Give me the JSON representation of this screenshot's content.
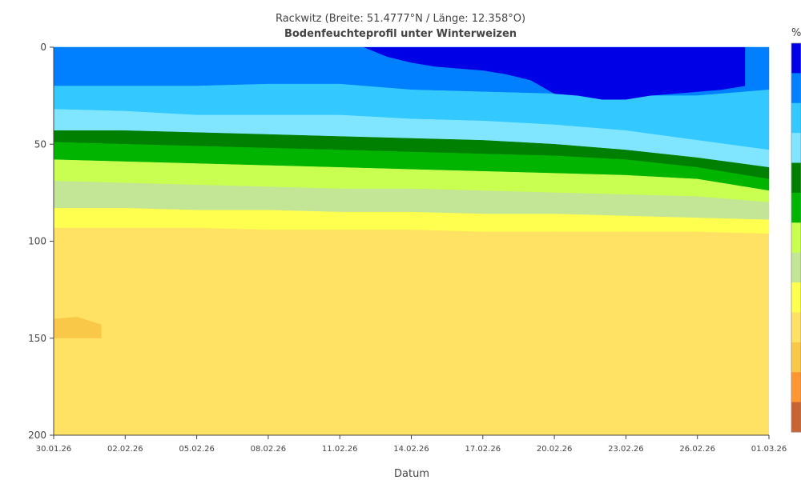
{
  "chart_data": {
    "type": "heatmap",
    "title": "Rackwitz (Breite: 51.4777°N / Länge: 12.358°O)",
    "subtitle": "Bodenfeuchteprofil unter Winterweizen",
    "xlabel": "Datum",
    "ylabel": "",
    "x_ticks": [
      "30.01.26",
      "02.02.26",
      "05.02.26",
      "08.02.26",
      "11.02.26",
      "14.02.26",
      "17.02.26",
      "20.02.26",
      "23.02.26",
      "26.02.26",
      "01.03.26"
    ],
    "y_ticks": [
      0,
      50,
      100,
      150,
      200
    ],
    "ylim": [
      200,
      0
    ],
    "xlim": [
      "30.01.26",
      "01.03.26"
    ],
    "legend_unit": "%",
    "legend_placement": "right",
    "colorscale": [
      "#0000e6",
      "#0080ff",
      "#33c8ff",
      "#80e6ff",
      "#008000",
      "#00b400",
      "#c8ff50",
      "#c3e696",
      "#ffff50",
      "#ffe264",
      "#fac848",
      "#ff9632",
      "#c86432"
    ],
    "series": [
      {
        "label": "b1",
        "color": "#0080ff",
        "start": [
          0,
          0
        ],
        "end": [
          30,
          0
        ],
        "top": [
          0,
          0,
          0,
          0,
          0,
          0,
          0,
          0,
          0,
          0,
          0
        ],
        "bottom": [
          20,
          20,
          20,
          19,
          19,
          22,
          23,
          24,
          25,
          25,
          22
        ]
      },
      {
        "label": "b2",
        "color": "#33c8ff",
        "start": [
          0,
          20
        ],
        "end": [
          30,
          22
        ],
        "top": [
          20,
          20,
          20,
          19,
          19,
          22,
          23,
          24,
          25,
          25,
          22
        ],
        "bottom": [
          32,
          33,
          35,
          35,
          35,
          37,
          38,
          40,
          43,
          48,
          53
        ]
      },
      {
        "label": "b3",
        "color": "#80e6ff",
        "start": [
          0,
          32
        ],
        "end": [
          30,
          53
        ],
        "top": [
          32,
          33,
          35,
          35,
          35,
          37,
          38,
          40,
          43,
          48,
          53
        ],
        "bottom": [
          43,
          43,
          44,
          45,
          46,
          47,
          48,
          50,
          53,
          57,
          62
        ]
      },
      {
        "label": "b4",
        "color": "#008000",
        "start": [
          0,
          43
        ],
        "end": [
          30,
          62
        ],
        "top": [
          43,
          43,
          44,
          45,
          46,
          47,
          48,
          50,
          53,
          57,
          62
        ],
        "bottom": [
          49,
          50,
          51,
          52,
          53,
          54,
          55,
          56,
          58,
          62,
          68
        ]
      },
      {
        "label": "b5",
        "color": "#00b400",
        "start": [
          0,
          49
        ],
        "end": [
          30,
          68
        ],
        "top": [
          49,
          50,
          51,
          52,
          53,
          54,
          55,
          56,
          58,
          62,
          68
        ],
        "bottom": [
          58,
          59,
          60,
          61,
          62,
          63,
          64,
          65,
          66,
          68,
          74
        ]
      },
      {
        "label": "b6",
        "color": "#c8ff50",
        "start": [
          0,
          58
        ],
        "end": [
          30,
          74
        ],
        "top": [
          58,
          59,
          60,
          61,
          62,
          63,
          64,
          65,
          66,
          68,
          74
        ],
        "bottom": [
          69,
          70,
          71,
          72,
          73,
          73,
          74,
          75,
          76,
          77,
          80
        ]
      },
      {
        "label": "b7",
        "color": "#c3e696",
        "start": [
          0,
          69
        ],
        "end": [
          30,
          80
        ],
        "top": [
          69,
          70,
          71,
          72,
          73,
          73,
          74,
          75,
          76,
          77,
          80
        ],
        "bottom": [
          83,
          83,
          84,
          84,
          85,
          85,
          86,
          86,
          87,
          88,
          89
        ]
      },
      {
        "label": "b8",
        "color": "#ffff50",
        "start": [
          0,
          83
        ],
        "end": [
          30,
          89
        ],
        "top": [
          83,
          83,
          84,
          84,
          85,
          85,
          86,
          86,
          87,
          88,
          89
        ],
        "bottom": [
          93,
          93,
          93,
          94,
          94,
          94,
          95,
          95,
          95,
          95,
          96
        ]
      }
    ],
    "base_color": "#ffe264",
    "deep_patch": {
      "color": "#0000e6",
      "days": [
        13,
        14,
        15,
        16,
        17,
        18,
        19,
        20,
        21,
        22,
        23,
        24,
        25,
        26,
        27,
        28,
        29
      ],
      "top": [
        0,
        0,
        0,
        0,
        0,
        0,
        0,
        0,
        0,
        0,
        0,
        0,
        0,
        0,
        0,
        0,
        0
      ],
      "bottom": [
        0,
        5,
        8,
        10,
        11,
        12,
        14,
        17,
        24,
        25,
        27,
        27,
        25,
        24,
        23,
        22,
        20
      ]
    },
    "dry_patch": {
      "color": "#fac848",
      "days": [
        0,
        1,
        2
      ],
      "top": [
        140,
        139,
        143
      ],
      "bottom": [
        150,
        150,
        150
      ]
    }
  }
}
